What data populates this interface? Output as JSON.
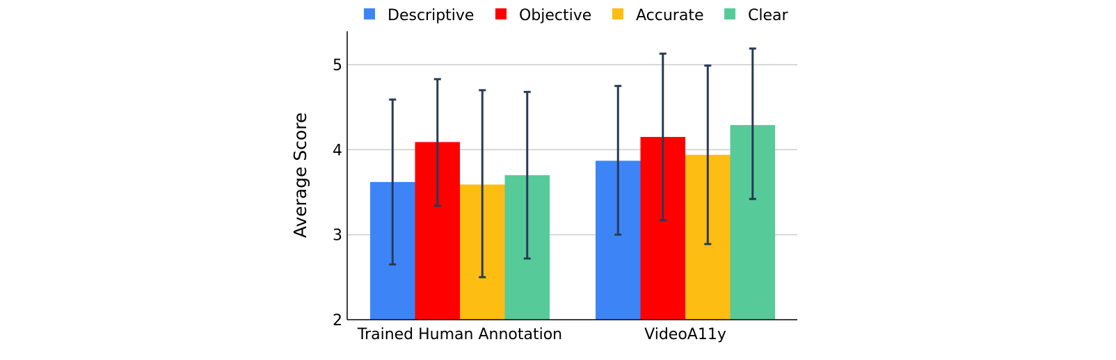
{
  "chart_data": {
    "type": "bar",
    "title": "",
    "xlabel": "",
    "ylabel": "Average Score",
    "ylim": [
      2,
      5.4
    ],
    "yticks": [
      "2",
      "3",
      "4",
      "5"
    ],
    "grid": true,
    "legend_position": "top",
    "categories": [
      "Trained Human Annotation",
      "VideoA11y"
    ],
    "series": [
      {
        "name": "Descriptive",
        "color": "#3d85f7",
        "values": [
          3.62,
          3.87
        ],
        "err_low": [
          2.65,
          3.0
        ],
        "err_high": [
          4.59,
          4.75
        ]
      },
      {
        "name": "Objective",
        "color": "#ff0000",
        "values": [
          4.09,
          4.15
        ],
        "err_low": [
          3.34,
          3.17
        ],
        "err_high": [
          4.83,
          5.13
        ]
      },
      {
        "name": "Accurate",
        "color": "#fdbd12",
        "values": [
          3.59,
          3.94
        ],
        "err_low": [
          2.5,
          2.89
        ],
        "err_high": [
          4.7,
          4.99
        ]
      },
      {
        "name": "Clear",
        "color": "#56cb99",
        "values": [
          3.7,
          4.29
        ],
        "err_low": [
          2.72,
          3.42
        ],
        "err_high": [
          4.68,
          5.19
        ]
      }
    ]
  }
}
